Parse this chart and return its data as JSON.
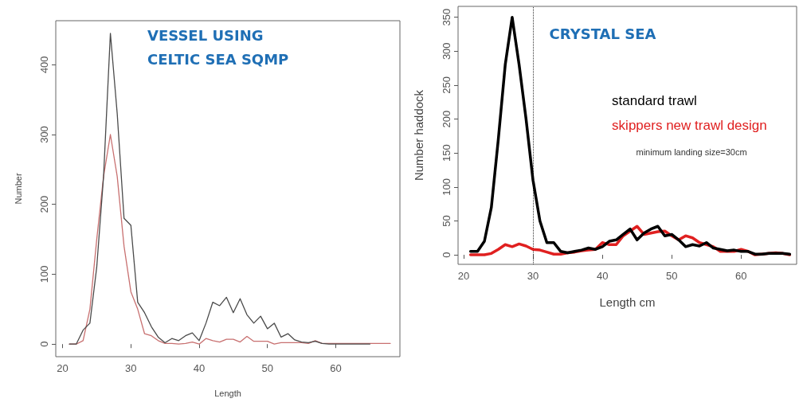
{
  "chart_data": [
    {
      "type": "line",
      "title": "VESSEL USING CELTIC SEA SQMP",
      "xlabel": "Length",
      "ylabel": "Number",
      "xlim": [
        19,
        69.4
      ],
      "xticks": [
        20,
        30,
        40,
        50,
        60
      ],
      "ylim": [
        -18,
        463
      ],
      "yticks": [
        0,
        100,
        200,
        300,
        400
      ],
      "grid": false,
      "legend": false,
      "marker": "none",
      "line_style": "solid",
      "series": [
        {
          "color": "#4a4a4a",
          "x": [
            21,
            22,
            23,
            24,
            25,
            26,
            27,
            28,
            29,
            30,
            31,
            32,
            33,
            34,
            35,
            36,
            37,
            38,
            39,
            40,
            41,
            42,
            43,
            44,
            45,
            46,
            47,
            48,
            49,
            50,
            51,
            52,
            53,
            54,
            55,
            56,
            57,
            58,
            59,
            60,
            61,
            62,
            63,
            64,
            65
          ],
          "values": [
            0,
            0,
            20,
            30,
            110,
            240,
            445,
            330,
            180,
            170,
            60,
            45,
            25,
            10,
            2,
            8,
            5,
            12,
            16,
            5,
            30,
            60,
            55,
            67,
            45,
            65,
            42,
            30,
            40,
            22,
            30,
            10,
            15,
            6,
            3,
            2,
            4,
            1,
            0,
            0,
            0,
            0,
            0,
            0,
            0
          ]
        },
        {
          "color": "#c87070",
          "x": [
            21,
            22,
            23,
            24,
            25,
            26,
            27,
            28,
            29,
            30,
            31,
            32,
            33,
            34,
            35,
            36,
            37,
            38,
            39,
            40,
            41,
            42,
            43,
            44,
            45,
            46,
            47,
            48,
            49,
            50,
            51,
            52,
            53,
            54,
            55,
            56,
            57,
            58,
            59,
            60,
            61,
            62,
            63,
            64,
            65,
            66,
            67,
            68
          ],
          "values": [
            0,
            0,
            5,
            50,
            150,
            240,
            300,
            240,
            140,
            75,
            50,
            15,
            12,
            5,
            1,
            1,
            0,
            1,
            3,
            0,
            8,
            5,
            3,
            7,
            7,
            3,
            11,
            4,
            4,
            4,
            0,
            2,
            2,
            2,
            2,
            1,
            5,
            1,
            1,
            1,
            1,
            1,
            1,
            1,
            1,
            1,
            1,
            1
          ]
        }
      ]
    },
    {
      "type": "line",
      "title": "CRYSTAL SEA",
      "xlabel": "Length cm",
      "ylabel": "Number haddock",
      "xlim": [
        19.2,
        68
      ],
      "xticks": [
        20,
        30,
        40,
        50,
        60
      ],
      "ylim": [
        -14,
        366
      ],
      "yticks": [
        0,
        50,
        100,
        150,
        200,
        250,
        300,
        350
      ],
      "grid": false,
      "legend": "top right",
      "marker": "none",
      "line_style": "solid",
      "ref_lines": [
        {
          "axis": "x",
          "value": 30,
          "line_style": "dotted",
          "color": "#333333"
        }
      ],
      "annotations": [
        "minimum landing size=30cm"
      ],
      "series": [
        {
          "name": "standard trawl",
          "color": "#000000",
          "x": [
            21,
            22,
            23,
            24,
            25,
            26,
            27,
            28,
            29,
            30,
            31,
            32,
            33,
            34,
            35,
            36,
            37,
            38,
            39,
            40,
            41,
            42,
            43,
            44,
            45,
            46,
            47,
            48,
            49,
            50,
            51,
            52,
            53,
            54,
            55,
            56,
            57,
            58,
            59,
            60,
            61,
            62,
            63,
            64,
            65,
            66,
            67
          ],
          "values": [
            5,
            5,
            20,
            70,
            170,
            280,
            350,
            280,
            200,
            110,
            50,
            18,
            18,
            5,
            3,
            5,
            7,
            10,
            8,
            12,
            20,
            22,
            30,
            38,
            22,
            32,
            38,
            42,
            28,
            30,
            22,
            12,
            15,
            13,
            18,
            10,
            8,
            6,
            7,
            5,
            5,
            1,
            1,
            2,
            2,
            2,
            1
          ]
        },
        {
          "name": "skippers new trawl design",
          "color": "#e02020",
          "x": [
            21,
            22,
            23,
            24,
            25,
            26,
            27,
            28,
            29,
            30,
            31,
            32,
            33,
            34,
            35,
            36,
            37,
            38,
            39,
            40,
            41,
            42,
            43,
            44,
            45,
            46,
            47,
            48,
            49,
            50,
            51,
            52,
            53,
            54,
            55,
            56,
            57,
            58,
            59,
            60,
            61,
            62,
            63,
            64,
            65,
            66,
            67
          ],
          "values": [
            0,
            0,
            0,
            2,
            8,
            15,
            12,
            16,
            13,
            8,
            7,
            4,
            1,
            1,
            3,
            4,
            6,
            7,
            8,
            18,
            15,
            15,
            28,
            35,
            42,
            30,
            32,
            34,
            35,
            28,
            22,
            28,
            25,
            18,
            15,
            12,
            5,
            5,
            5,
            8,
            5,
            0,
            1,
            2,
            3,
            2,
            0
          ]
        }
      ]
    }
  ]
}
